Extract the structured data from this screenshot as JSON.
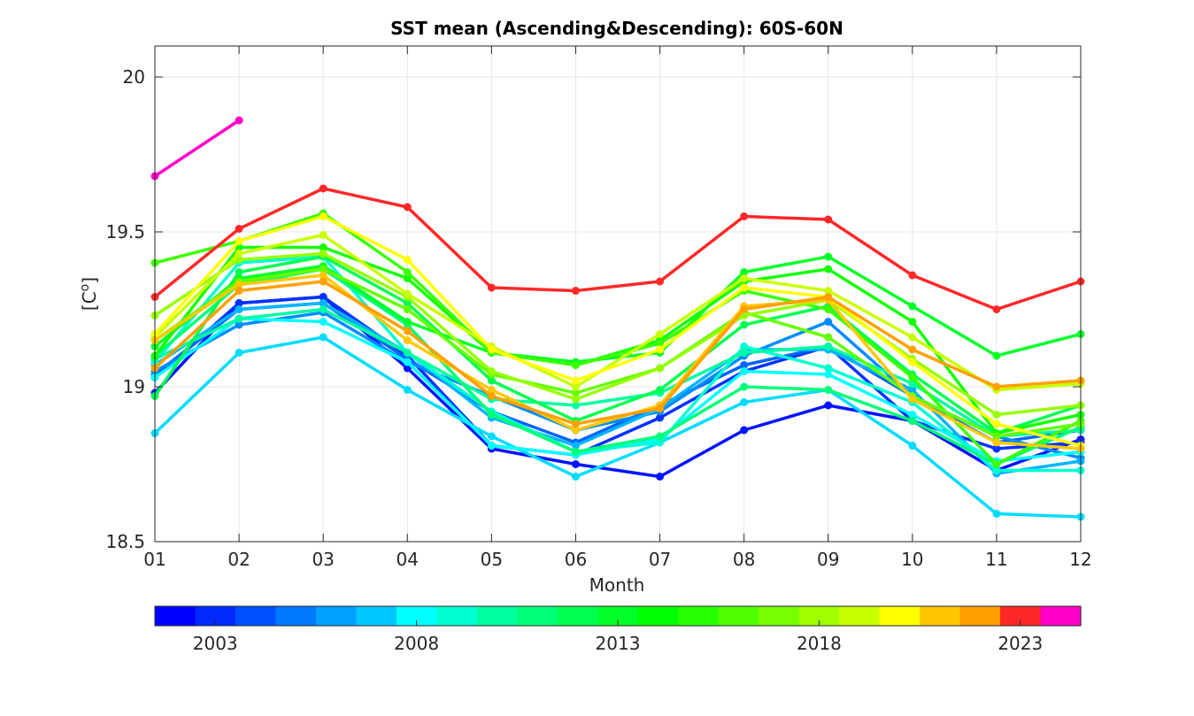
{
  "chart_data": {
    "type": "line",
    "title": "SST mean (Ascending&Descending): 60S-60N",
    "xlabel": "Month",
    "ylabel_prefix": "[C",
    "ylabel_sup": "o",
    "ylabel_suffix": "]",
    "x_ticks": [
      "01",
      "02",
      "03",
      "04",
      "05",
      "06",
      "07",
      "08",
      "09",
      "10",
      "11",
      "12"
    ],
    "y_ticks": [
      "18.5",
      "19",
      "19.5",
      "20"
    ],
    "ylim": [
      18.5,
      20.1
    ],
    "grid": true,
    "colorbar": {
      "labels": [
        "2003",
        "2008",
        "2013",
        "2018",
        "2023"
      ],
      "label_years": [
        2003,
        2008,
        2013,
        2018,
        2023
      ],
      "years": [
        2002,
        2003,
        2004,
        2005,
        2006,
        2007,
        2008,
        2009,
        2010,
        2011,
        2012,
        2013,
        2014,
        2015,
        2016,
        2017,
        2018,
        2019,
        2020,
        2021,
        2022,
        2023,
        2024
      ],
      "colors": [
        "#0000ff",
        "#0028ff",
        "#0050ff",
        "#0078ff",
        "#00a0ff",
        "#00c8ff",
        "#00ffff",
        "#00ffd2",
        "#00ffa0",
        "#00ff78",
        "#00ff50",
        "#00ff28",
        "#00ff00",
        "#28ff00",
        "#50ff00",
        "#78ff00",
        "#a0ff00",
        "#c8ff00",
        "#ffff00",
        "#ffc800",
        "#ffa000",
        "#ff2828",
        "#ff00c8"
      ]
    },
    "series": [
      {
        "color": "#0014ff",
        "values": [
          18.98,
          19.27,
          19.29,
          19.06,
          18.8,
          18.75,
          18.71,
          18.86,
          18.94,
          18.89,
          18.73,
          18.83
        ]
      },
      {
        "color": "#0032ff",
        "values": [
          19.03,
          19.27,
          19.29,
          19.1,
          18.81,
          18.78,
          18.9,
          19.05,
          19.13,
          18.89,
          18.8,
          18.82
        ]
      },
      {
        "color": "#0064ff",
        "values": [
          19.04,
          19.25,
          19.27,
          19.09,
          18.92,
          18.82,
          18.94,
          19.07,
          19.13,
          18.97,
          18.82,
          18.86
        ]
      },
      {
        "color": "#008cff",
        "values": [
          19.05,
          19.2,
          19.24,
          19.08,
          18.97,
          18.86,
          18.92,
          19.1,
          19.21,
          18.97,
          18.84,
          18.77
        ]
      },
      {
        "color": "#00b4ff",
        "values": [
          19.07,
          19.25,
          19.27,
          19.11,
          18.9,
          18.81,
          18.93,
          19.12,
          19.12,
          18.99,
          18.72,
          18.76
        ]
      },
      {
        "color": "#00dcff",
        "values": [
          18.85,
          19.11,
          19.16,
          18.99,
          18.84,
          18.71,
          18.82,
          18.95,
          18.99,
          18.81,
          18.59,
          18.58
        ]
      },
      {
        "color": "#00ffff",
        "values": [
          19.03,
          19.22,
          19.21,
          19.08,
          18.81,
          18.78,
          18.83,
          19.05,
          19.04,
          18.91,
          18.76,
          18.79
        ]
      },
      {
        "color": "#00ffd2",
        "values": [
          19.08,
          19.4,
          19.42,
          19.11,
          18.92,
          18.79,
          18.82,
          19.13,
          19.06,
          18.95,
          18.73,
          18.73
        ]
      },
      {
        "color": "#00ffa0",
        "values": [
          19.09,
          19.22,
          19.25,
          19.11,
          18.96,
          18.94,
          18.98,
          19.11,
          19.13,
          19.01,
          18.84,
          18.86
        ]
      },
      {
        "color": "#00ff78",
        "values": [
          19.1,
          19.33,
          19.38,
          19.2,
          18.91,
          18.79,
          18.84,
          19.0,
          18.99,
          18.89,
          18.75,
          18.87
        ]
      },
      {
        "color": "#00ff50",
        "values": [
          18.97,
          19.37,
          19.42,
          19.27,
          19.02,
          18.89,
          18.99,
          19.2,
          19.26,
          19.04,
          18.85,
          18.94
        ]
      },
      {
        "color": "#00ff28",
        "values": [
          19.13,
          19.35,
          19.39,
          19.21,
          19.11,
          19.08,
          19.11,
          19.37,
          19.42,
          19.26,
          19.1,
          19.17
        ]
      },
      {
        "color": "#14ff00",
        "values": [
          19.1,
          19.45,
          19.45,
          19.35,
          19.11,
          19.07,
          19.15,
          19.34,
          19.38,
          19.21,
          18.85,
          18.91
        ]
      },
      {
        "color": "#3cff00",
        "values": [
          19.4,
          19.47,
          19.56,
          19.37,
          19.11,
          19.07,
          19.14,
          19.31,
          19.25,
          19.03,
          18.75,
          18.89
        ]
      },
      {
        "color": "#64ff00",
        "values": [
          19.15,
          19.34,
          19.38,
          19.25,
          19.04,
          18.98,
          19.06,
          19.24,
          19.16,
          18.97,
          18.84,
          18.88
        ]
      },
      {
        "color": "#96ff00",
        "values": [
          19.23,
          19.41,
          19.43,
          19.29,
          19.05,
          18.96,
          19.06,
          19.23,
          19.28,
          19.09,
          18.91,
          18.94
        ]
      },
      {
        "color": "#c8ff00",
        "values": [
          19.16,
          19.43,
          19.49,
          19.3,
          19.13,
          19.0,
          19.17,
          19.35,
          19.31,
          19.16,
          18.99,
          19.01
        ]
      },
      {
        "color": "#ffff00",
        "values": [
          19.17,
          19.47,
          19.55,
          19.41,
          19.12,
          19.02,
          19.12,
          19.32,
          19.29,
          19.08,
          18.88,
          18.81
        ]
      },
      {
        "color": "#ffc800",
        "values": [
          19.15,
          19.33,
          19.36,
          19.15,
          18.99,
          18.86,
          18.94,
          19.26,
          19.28,
          18.96,
          18.82,
          18.8
        ]
      },
      {
        "color": "#ffa000",
        "values": [
          19.06,
          19.31,
          19.34,
          19.18,
          18.97,
          18.88,
          18.93,
          19.25,
          19.29,
          19.12,
          19.0,
          19.02
        ]
      },
      {
        "color": "#ff2828",
        "values": [
          19.29,
          19.51,
          19.64,
          19.58,
          19.32,
          19.31,
          19.34,
          19.55,
          19.54,
          19.36,
          19.25,
          19.34
        ]
      },
      {
        "color": "#ff00c8",
        "values": [
          19.68,
          19.86
        ]
      }
    ]
  }
}
